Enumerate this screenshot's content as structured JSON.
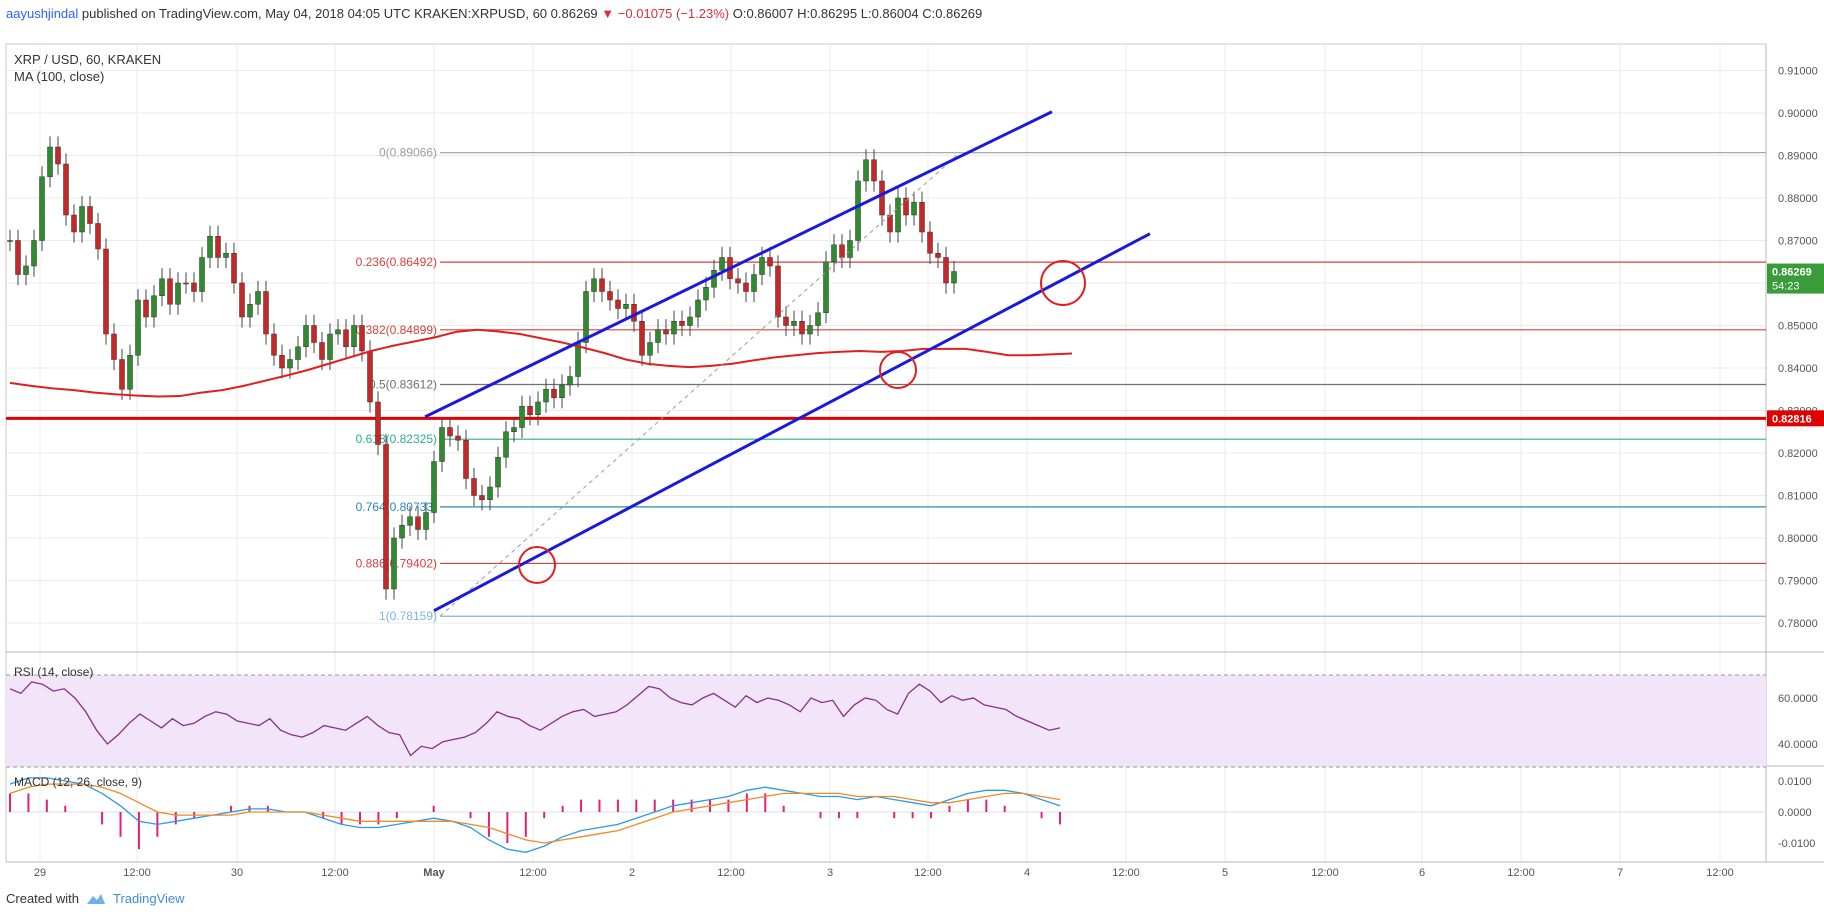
{
  "header": {
    "author": "aayushjindal",
    "published": "published on TradingView.com, May 04, 2018 04:05 UTC",
    "symbol": "KRAKEN:XRPUSD, 60",
    "last": "0.86269",
    "change": "−0.01075 (−1.23%)",
    "o_label": "O:",
    "o": "0.86007",
    "h_label": "H:",
    "h": "0.86295",
    "l_label": "L:",
    "l": "0.86004",
    "c_label": "C:",
    "c": "0.86269"
  },
  "footer": {
    "created_with": "Created with",
    "brand": "TradingView"
  },
  "colors": {
    "up": "#2e8b2e",
    "down": "#c62828",
    "ma": "#e02020",
    "channel": "#1a1adc",
    "support": "#e00000",
    "rsi": "#8b2d8b",
    "macd": "#2d9ae8",
    "signal": "#f08a24",
    "hist_pos": "#e0207a",
    "rsi_band": "#f3e5f9"
  },
  "chart_data": [
    {
      "type": "candlestick",
      "title": "XRP / USD, 60, KRAKEN",
      "indicator_label": "MA (100, close)",
      "ylim": [
        0.775,
        0.917
      ],
      "y_ticks": [
        "0.91000",
        "0.90000",
        "0.89000",
        "0.88000",
        "0.87000",
        "0.86000",
        "0.85000",
        "0.84000",
        "0.83000",
        "0.82000",
        "0.81000",
        "0.80000",
        "0.79000",
        "0.78000"
      ],
      "x_ticks": [
        "29",
        "12:00",
        "30",
        "12:00",
        "May",
        "12:00",
        "2",
        "12:00",
        "3",
        "12:00",
        "4",
        "12:00",
        "5",
        "12:00",
        "6",
        "12:00",
        "7",
        "12:00"
      ],
      "last_price_label": "0.86269",
      "countdown_label": "54:23",
      "support_label": "0.82816",
      "support_level": 0.82816,
      "fibonacci": [
        {
          "label": "0(0.89066)",
          "level": 0.89066
        },
        {
          "label": "0.236(0.86492)",
          "level": 0.86492
        },
        {
          "label": "0.382(0.84899)",
          "level": 0.84899
        },
        {
          "label": "0.5(0.83612)",
          "level": 0.83612
        },
        {
          "label": "0.618(0.82325)",
          "level": 0.82325
        },
        {
          "label": "0.764(0.80733)",
          "level": 0.80733
        },
        {
          "label": "0.886(0.79402)",
          "level": 0.79402
        },
        {
          "label": "1(0.78159)",
          "level": 0.78159
        }
      ],
      "closes": [
        0.87,
        0.862,
        0.864,
        0.87,
        0.885,
        0.892,
        0.888,
        0.876,
        0.872,
        0.878,
        0.874,
        0.868,
        0.848,
        0.842,
        0.835,
        0.843,
        0.856,
        0.852,
        0.857,
        0.861,
        0.855,
        0.86,
        0.86,
        0.858,
        0.866,
        0.871,
        0.866,
        0.867,
        0.86,
        0.852,
        0.855,
        0.858,
        0.848,
        0.843,
        0.84,
        0.842,
        0.845,
        0.85,
        0.846,
        0.842,
        0.848,
        0.849,
        0.845,
        0.85,
        0.844,
        0.832,
        0.822,
        0.788,
        0.8,
        0.803,
        0.805,
        0.802,
        0.806,
        0.818,
        0.826,
        0.824,
        0.823,
        0.814,
        0.81,
        0.809,
        0.812,
        0.819,
        0.825,
        0.826,
        0.831,
        0.829,
        0.832,
        0.835,
        0.833,
        0.836,
        0.838,
        0.846,
        0.858,
        0.861,
        0.858,
        0.856,
        0.854,
        0.855,
        0.851,
        0.843,
        0.846,
        0.849,
        0.848,
        0.851,
        0.85,
        0.852,
        0.856,
        0.859,
        0.863,
        0.866,
        0.861,
        0.86,
        0.858,
        0.862,
        0.866,
        0.864,
        0.852,
        0.85,
        0.851,
        0.848,
        0.85,
        0.853,
        0.865,
        0.869,
        0.866,
        0.87,
        0.884,
        0.889,
        0.884,
        0.876,
        0.872,
        0.88,
        0.876,
        0.879,
        0.872,
        0.867,
        0.866,
        0.86,
        0.8627
      ],
      "ma_100": [
        0.8365,
        0.8358,
        0.8352,
        0.8348,
        0.8342,
        0.8338,
        0.8335,
        0.8333,
        0.8334,
        0.8342,
        0.8348,
        0.8358,
        0.837,
        0.8382,
        0.8395,
        0.841,
        0.8425,
        0.844,
        0.8452,
        0.8462,
        0.8472,
        0.8485,
        0.849,
        0.8486,
        0.848,
        0.847,
        0.846,
        0.8448,
        0.8435,
        0.842,
        0.841,
        0.8405,
        0.8402,
        0.8405,
        0.841,
        0.8418,
        0.8425,
        0.843,
        0.8435,
        0.8438,
        0.844,
        0.8438,
        0.844,
        0.8445,
        0.8445,
        0.8445,
        0.8438,
        0.843,
        0.843,
        0.8432,
        0.8434
      ],
      "channel_upper": [
        [
          0.8285,
          0.9003
        ]
      ],
      "channel_lower": [
        [
          0.7829,
          0.8716
        ]
      ]
    },
    {
      "type": "line",
      "title": "RSI (14, close)",
      "y_ticks": [
        "60.0000",
        "40.0000"
      ],
      "ylim": [
        25,
        75
      ],
      "band": [
        30,
        70
      ],
      "values": [
        64,
        62,
        67,
        66,
        63,
        64,
        60,
        54,
        46,
        40,
        44,
        49,
        53,
        50,
        47,
        51,
        48,
        49,
        52,
        54,
        53,
        50,
        49,
        48,
        51,
        46,
        44,
        43,
        45,
        48,
        47,
        46,
        49,
        52,
        48,
        45,
        44,
        35,
        39,
        38,
        41,
        42,
        43,
        45,
        49,
        54,
        52,
        51,
        48,
        46,
        49,
        52,
        54,
        55,
        52,
        53,
        54,
        57,
        61,
        65,
        64,
        60,
        58,
        57,
        60,
        62,
        59,
        56,
        61,
        58,
        60,
        59,
        57,
        54,
        60,
        58,
        59,
        52,
        57,
        60,
        59,
        55,
        53,
        62,
        66,
        63,
        58,
        61,
        59,
        60,
        57,
        56,
        55,
        52,
        50,
        48,
        46,
        47
      ]
    },
    {
      "type": "macd",
      "title": "MACD (12, 26, close, 9)",
      "y_ticks": [
        "0.0100",
        "0.0000",
        "-0.0100"
      ],
      "ylim": [
        -0.015,
        0.013
      ],
      "macd": [
        0.009,
        0.011,
        0.011,
        0.01,
        0.009,
        0.006,
        0.002,
        -0.003,
        -0.004,
        -0.003,
        -0.002,
        -0.001,
        0.0,
        0.001,
        0.001,
        0.0,
        0.0,
        -0.002,
        -0.004,
        -0.005,
        -0.005,
        -0.004,
        -0.003,
        -0.002,
        -0.003,
        -0.005,
        -0.009,
        -0.012,
        -0.013,
        -0.011,
        -0.008,
        -0.006,
        -0.005,
        -0.004,
        -0.002,
        0.0,
        0.002,
        0.003,
        0.004,
        0.005,
        0.007,
        0.008,
        0.007,
        0.006,
        0.005,
        0.005,
        0.004,
        0.005,
        0.004,
        0.003,
        0.002,
        0.004,
        0.006,
        0.007,
        0.007,
        0.006,
        0.004,
        0.002
      ],
      "signal": [
        0.006,
        0.008,
        0.009,
        0.009,
        0.009,
        0.008,
        0.006,
        0.003,
        0.0,
        -0.001,
        -0.001,
        -0.001,
        -0.001,
        0.0,
        0.0,
        0.0,
        0.0,
        -0.001,
        -0.002,
        -0.003,
        -0.003,
        -0.003,
        -0.003,
        -0.003,
        -0.003,
        -0.004,
        -0.005,
        -0.007,
        -0.009,
        -0.01,
        -0.009,
        -0.008,
        -0.007,
        -0.006,
        -0.004,
        -0.002,
        0.0,
        0.001,
        0.002,
        0.003,
        0.004,
        0.005,
        0.006,
        0.006,
        0.006,
        0.006,
        0.005,
        0.005,
        0.005,
        0.004,
        0.003,
        0.003,
        0.004,
        0.005,
        0.006,
        0.006,
        0.005,
        0.004
      ]
    }
  ]
}
